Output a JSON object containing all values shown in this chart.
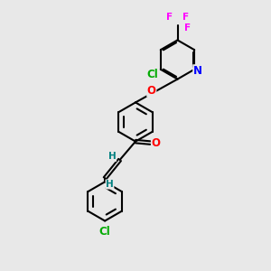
{
  "background_color": "#e8e8e8",
  "bond_color": "#000000",
  "bond_width": 1.5,
  "atom_colors": {
    "Cl": "#00aa00",
    "O": "#ff0000",
    "N": "#0000ff",
    "F": "#ff00ff",
    "H": "#008080",
    "C": "#000000"
  },
  "font_size_atom": 8.5,
  "font_size_small": 7.5,
  "figsize": [
    3.0,
    3.0
  ],
  "dpi": 100
}
